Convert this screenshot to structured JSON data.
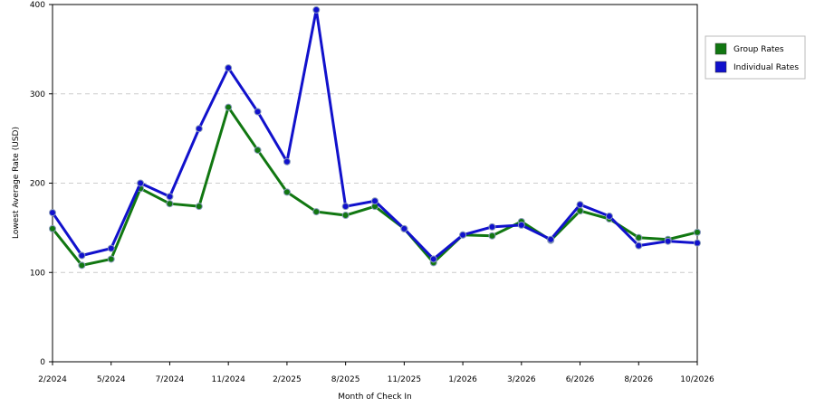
{
  "chart_data": {
    "type": "line",
    "x_label": "Month of Check In",
    "y_label": "Lowest Average Rate (USD)",
    "categories": [
      "2/2024",
      null,
      "5/2024",
      null,
      "7/2024",
      null,
      "11/2024",
      null,
      "2/2025",
      null,
      "8/2025",
      null,
      "11/2025",
      null,
      "1/2026",
      null,
      "3/2026",
      null,
      "6/2026",
      null,
      "8/2026",
      null,
      "10/2026"
    ],
    "series": [
      {
        "name": "Group Rates",
        "color": "#117711",
        "values": [
          149,
          108,
          115,
          194,
          177,
          174,
          285,
          237,
          190,
          168,
          164,
          174,
          149,
          111,
          142,
          141,
          157,
          136,
          169,
          160,
          139,
          137,
          145
        ]
      },
      {
        "name": "Individual Rates",
        "color": "#1111cc",
        "values": [
          167,
          119,
          127,
          200,
          185,
          261,
          329,
          280,
          224,
          394,
          174,
          180,
          149,
          115,
          142,
          151,
          153,
          137,
          176,
          163,
          130,
          135,
          133
        ]
      }
    ],
    "ylim": [
      0,
      400
    ],
    "yticks": [
      0,
      100,
      200,
      300,
      400
    ],
    "grid": true,
    "legend": "right"
  }
}
